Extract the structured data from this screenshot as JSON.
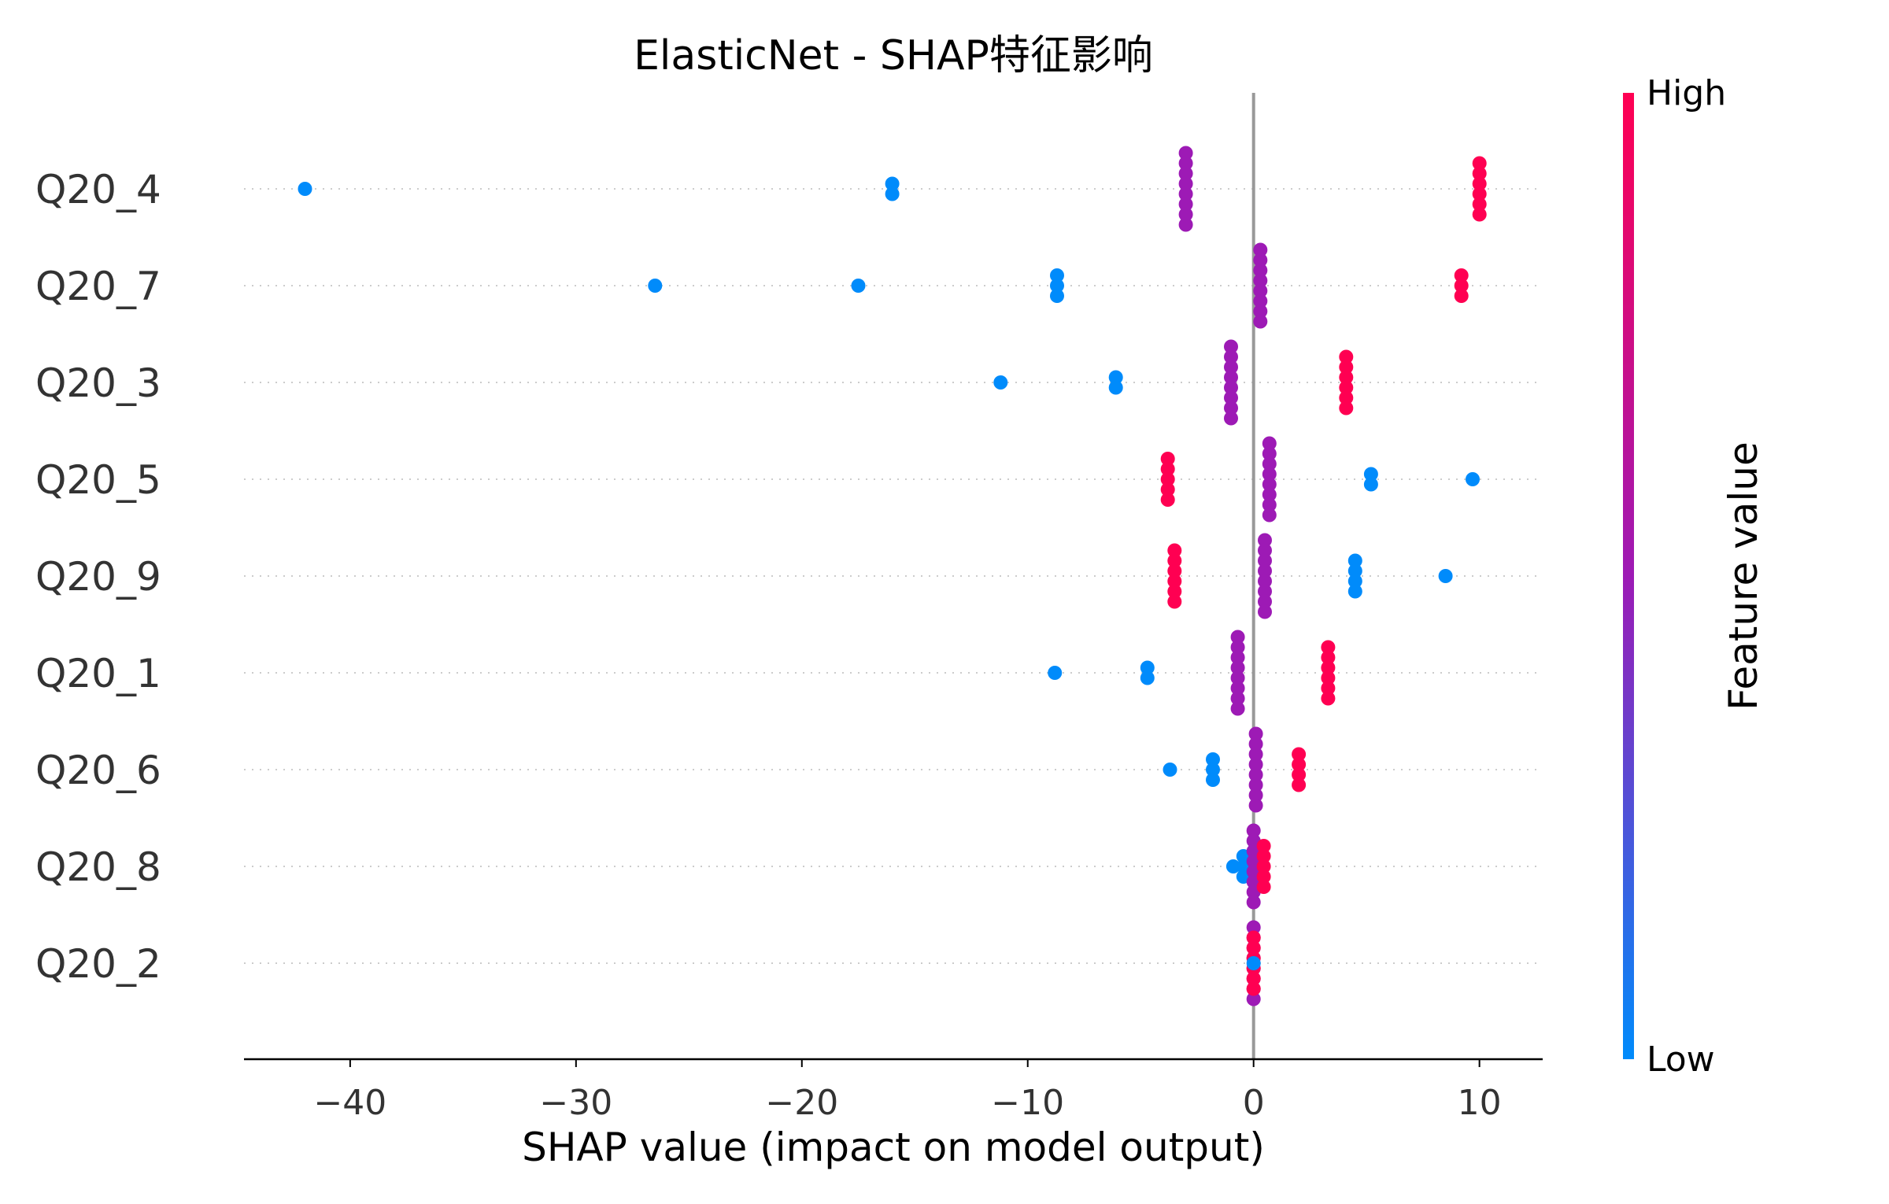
{
  "chart_data": {
    "type": "scatter",
    "title": "ElasticNet - SHAP特征影响",
    "xlabel": "SHAP value (impact on model output)",
    "ylabel": "",
    "xlim": [
      -44.7,
      12.8
    ],
    "xticks": [
      -40,
      -30,
      -20,
      -10,
      0,
      10
    ],
    "xtick_labels": [
      "−40",
      "−30",
      "−20",
      "−10",
      "0",
      "10"
    ],
    "grid": false,
    "legend": "colorbar-right",
    "colorbar": {
      "label": "Feature value",
      "high_label": "High",
      "low_label": "Low",
      "low_color": "#008bfb",
      "mid_color": "#9d1ab5",
      "high_color": "#ff0052"
    },
    "features": [
      {
        "name": "Q20_4",
        "points": [
          {
            "x": -42.0,
            "c": 0.0,
            "n": 1
          },
          {
            "x": -16.0,
            "c": 0.0,
            "n": 2
          },
          {
            "x": -3.0,
            "c": 0.5,
            "n": 8
          },
          {
            "x": 10.0,
            "c": 1.0,
            "n": 6
          }
        ]
      },
      {
        "name": "Q20_7",
        "points": [
          {
            "x": -26.5,
            "c": 0.0,
            "n": 1
          },
          {
            "x": -17.5,
            "c": 0.0,
            "n": 1
          },
          {
            "x": -8.7,
            "c": 0.0,
            "n": 3
          },
          {
            "x": 0.3,
            "c": 0.5,
            "n": 8
          },
          {
            "x": 9.2,
            "c": 1.0,
            "n": 3
          }
        ]
      },
      {
        "name": "Q20_3",
        "points": [
          {
            "x": -11.2,
            "c": 0.0,
            "n": 1
          },
          {
            "x": -6.1,
            "c": 0.0,
            "n": 2
          },
          {
            "x": -1.0,
            "c": 0.5,
            "n": 8
          },
          {
            "x": 4.1,
            "c": 1.0,
            "n": 6
          }
        ]
      },
      {
        "name": "Q20_5",
        "points": [
          {
            "x": -3.8,
            "c": 1.0,
            "n": 5
          },
          {
            "x": 0.7,
            "c": 0.5,
            "n": 8
          },
          {
            "x": 5.2,
            "c": 0.0,
            "n": 2
          },
          {
            "x": 9.7,
            "c": 0.0,
            "n": 1
          }
        ]
      },
      {
        "name": "Q20_9",
        "points": [
          {
            "x": -3.5,
            "c": 1.0,
            "n": 6
          },
          {
            "x": 0.5,
            "c": 0.5,
            "n": 8
          },
          {
            "x": 4.5,
            "c": 0.0,
            "n": 4
          },
          {
            "x": 8.5,
            "c": 0.0,
            "n": 1
          }
        ]
      },
      {
        "name": "Q20_1",
        "points": [
          {
            "x": -8.8,
            "c": 0.0,
            "n": 1
          },
          {
            "x": -4.7,
            "c": 0.0,
            "n": 2
          },
          {
            "x": -0.7,
            "c": 0.5,
            "n": 8
          },
          {
            "x": 3.3,
            "c": 1.0,
            "n": 6
          }
        ]
      },
      {
        "name": "Q20_6",
        "points": [
          {
            "x": -3.7,
            "c": 0.0,
            "n": 1
          },
          {
            "x": -1.8,
            "c": 0.0,
            "n": 3
          },
          {
            "x": 0.1,
            "c": 0.5,
            "n": 8
          },
          {
            "x": 2.0,
            "c": 1.0,
            "n": 4
          }
        ]
      },
      {
        "name": "Q20_8",
        "points": [
          {
            "x": -0.9,
            "c": 0.0,
            "n": 1
          },
          {
            "x": -0.45,
            "c": 0.0,
            "n": 3
          },
          {
            "x": 0.0,
            "c": 0.5,
            "n": 8
          },
          {
            "x": 0.45,
            "c": 1.0,
            "n": 5
          }
        ]
      },
      {
        "name": "Q20_2",
        "points": [
          {
            "x": 0.0,
            "c": 0.5,
            "n": 8
          },
          {
            "x": 0.0,
            "c": 1.0,
            "n": 6
          },
          {
            "x": 0.0,
            "c": 0.0,
            "n": 1
          }
        ]
      }
    ]
  }
}
